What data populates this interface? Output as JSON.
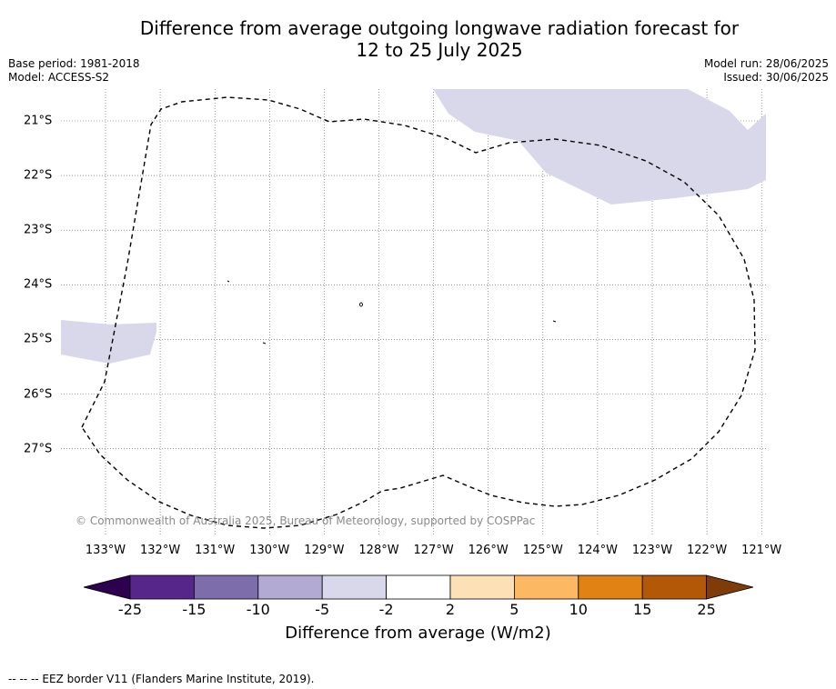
{
  "title_line1": "Difference from average outgoing longwave radiation forecast for",
  "title_line2": "12 to 25 July 2025",
  "base_period": "Base period: 1981-2018",
  "model": "Model: ACCESS-S2",
  "model_run": "Model run: 28/06/2025",
  "issued": "Issued: 30/06/2025",
  "lon_labels": [
    "133°W",
    "132°W",
    "131°W",
    "130°W",
    "129°W",
    "128°W",
    "127°W",
    "126°W",
    "125°W",
    "124°W",
    "123°W",
    "122°W",
    "121°W"
  ],
  "lat_labels": [
    "21°S",
    "22°S",
    "23°S",
    "24°S",
    "25°S",
    "26°S",
    "27°S"
  ],
  "copyright": "© Commonwealth of Australia 2025, Bureau of Meteorology, supported by COSPPac",
  "colorbar": {
    "ticks": [
      "-25",
      "-15",
      "-10",
      "-5",
      "-2",
      "2",
      "5",
      "10",
      "15",
      "25"
    ],
    "colors": [
      "#2d0050",
      "#56268a",
      "#7d6eab",
      "#b2aad3",
      "#d8d8ea",
      "#ffffff",
      "#fee0b6",
      "#fdb863",
      "#e08214",
      "#b35806",
      "#7f3b08"
    ],
    "label": "Difference from average (W/m2)"
  },
  "anomaly_color": "#d8d8ea",
  "footer": "--  --  -- EEZ border V11 (Flanders Marine Institute, 2019)."
}
